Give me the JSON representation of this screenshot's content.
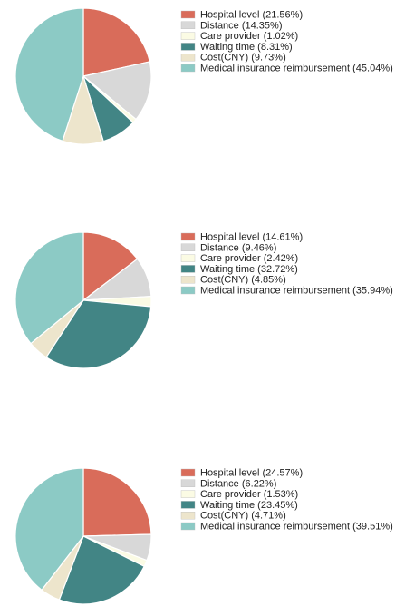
{
  "palette": {
    "Hospital level": "#d96c5a",
    "Distance": "#d8d8d8",
    "Care provider": "#fbfbe4",
    "Waiting time": "#428585",
    "Cost(CNY)": "#ede5cc",
    "Medical insurance reimbursement": "#8ccac5"
  },
  "chart_data": [
    {
      "type": "pie",
      "legend_position": "right",
      "slices": [
        {
          "label": "Hospital level (21.56%)",
          "category": "Hospital level",
          "value": 21.56
        },
        {
          "label": "Distance (14.35%)",
          "category": "Distance",
          "value": 14.35
        },
        {
          "label": "Care provider (1.02%)",
          "category": "Care provider",
          "value": 1.02
        },
        {
          "label": "Waiting time (8.31%)",
          "category": "Waiting time",
          "value": 8.31
        },
        {
          "label": "Cost(CNY) (9.73%)",
          "category": "Cost(CNY)",
          "value": 9.73
        },
        {
          "label": "Medical insurance reimbursement (45.04%)",
          "category": "Medical insurance reimbursement",
          "value": 45.04
        }
      ]
    },
    {
      "type": "pie",
      "legend_position": "right",
      "slices": [
        {
          "label": "Hospital level (14.61%)",
          "category": "Hospital level",
          "value": 14.61
        },
        {
          "label": "Distance (9.46%)",
          "category": "Distance",
          "value": 9.46
        },
        {
          "label": "Care provider (2.42%)",
          "category": "Care provider",
          "value": 2.42
        },
        {
          "label": "Waiting time (32.72%)",
          "category": "Waiting time",
          "value": 32.72
        },
        {
          "label": "Cost(CNY) (4.85%)",
          "category": "Cost(CNY)",
          "value": 4.85
        },
        {
          "label": "Medical insurance reimbursement (35.94%)",
          "category": "Medical insurance reimbursement",
          "value": 35.94
        }
      ]
    },
    {
      "type": "pie",
      "legend_position": "right",
      "slices": [
        {
          "label": "Hospital level (24.57%)",
          "category": "Hospital level",
          "value": 24.57
        },
        {
          "label": "Distance (6.22%)",
          "category": "Distance",
          "value": 6.22
        },
        {
          "label": "Care provider (1.53%)",
          "category": "Care provider",
          "value": 1.53
        },
        {
          "label": "Waiting time (23.45%)",
          "category": "Waiting time",
          "value": 23.45
        },
        {
          "label": "Cost(CNY) (4.71%)",
          "category": "Cost(CNY)",
          "value": 4.71
        },
        {
          "label": "Medical insurance reimbursement (39.51%)",
          "category": "Medical insurance reimbursement",
          "value": 39.51
        }
      ]
    }
  ]
}
